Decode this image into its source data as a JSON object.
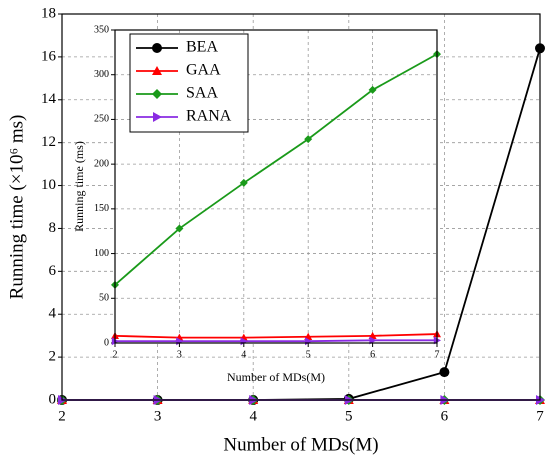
{
  "chart_data": [
    {
      "type": "line",
      "xlabel": "Number of MDs(M)",
      "ylabel": "Running time (×10⁶ ms)",
      "x": [
        2,
        3,
        4,
        5,
        6,
        7
      ],
      "xlim": [
        2,
        7
      ],
      "xticks": [
        2,
        3,
        4,
        5,
        6,
        7
      ],
      "ylim": [
        0,
        18
      ],
      "yticks": [
        0,
        2,
        4,
        6,
        8,
        10,
        12,
        14,
        16,
        18
      ],
      "grid": true,
      "series": [
        {
          "name": "BEA",
          "color": "#000000",
          "marker": "circle",
          "values": [
            0,
            0,
            0,
            0.05,
            1.3,
            16.4
          ]
        },
        {
          "name": "GAA",
          "color": "#ff0000",
          "marker": "triangle-up",
          "values": [
            0,
            0,
            0,
            0,
            0,
            0
          ]
        },
        {
          "name": "SAA",
          "color": "#1a9a1a",
          "marker": "diamond",
          "values": [
            0,
            0,
            0,
            0,
            0,
            0
          ]
        },
        {
          "name": "RANA",
          "color": "#8a2be2",
          "marker": "triangle-right",
          "values": [
            0,
            0,
            0,
            0,
            0,
            0
          ]
        }
      ]
    },
    {
      "type": "line",
      "xlabel": "Number of MDs(M)",
      "ylabel": "Running time (ms)",
      "x": [
        2,
        3,
        4,
        5,
        6,
        7
      ],
      "xlim": [
        2,
        7
      ],
      "xticks": [
        2,
        3,
        4,
        5,
        6,
        7
      ],
      "ylim": [
        0,
        350
      ],
      "yticks": [
        0,
        50,
        100,
        150,
        200,
        250,
        300,
        350
      ],
      "grid": true,
      "series": [
        {
          "name": "GAA",
          "color": "#ff0000",
          "marker": "triangle-up",
          "values": [
            8,
            6,
            6,
            7,
            8,
            10
          ]
        },
        {
          "name": "SAA",
          "color": "#1a9a1a",
          "marker": "diamond",
          "values": [
            65,
            128,
            179,
            228,
            283,
            323
          ]
        },
        {
          "name": "RANA",
          "color": "#8a2be2",
          "marker": "triangle-right",
          "values": [
            2,
            2,
            2,
            2,
            3,
            3
          ]
        }
      ]
    }
  ]
}
